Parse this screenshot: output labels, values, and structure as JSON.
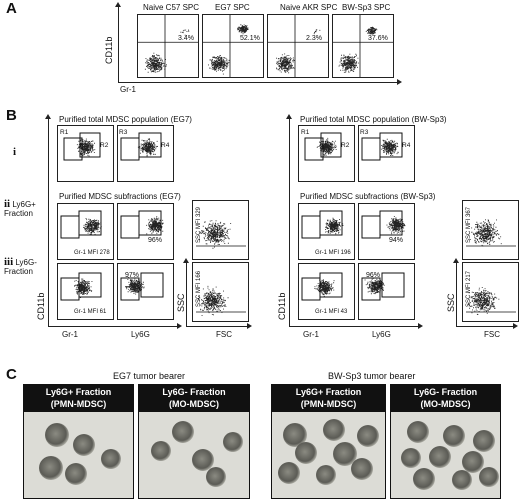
{
  "panel_labels": {
    "a": "A",
    "b": "B",
    "c": "C"
  },
  "panel_a": {
    "plots": [
      {
        "title": "Naive C57 SPC",
        "percent": "3.4%"
      },
      {
        "title": "EG7 SPC",
        "percent": "52.1%"
      },
      {
        "title": "Naive AKR SPC",
        "percent": "2.3%"
      },
      {
        "title": "BW-Sp3 SPC",
        "percent": "37.6%"
      }
    ],
    "y_axis": "CD11b",
    "x_axis": "Gr-1"
  },
  "panel_b": {
    "left": {
      "total_title": "Purified total MDSC population (EG7)",
      "sub_title": "Purified MDSC subfractions (EG7)",
      "gates": [
        "R1",
        "R2",
        "R3",
        "R4"
      ],
      "ly6g_pos_pct": "96%",
      "ly6g_neg_pct": "97%",
      "gr1_mfi_pos": "Gr-1 MFI 278",
      "gr1_mfi_neg": "Gr-1 MFI 61",
      "ssc_mfi_pos": "SSC MFI 329",
      "ssc_mfi_neg": "SSC MFI 166",
      "y_axis": "CD11b",
      "x_axis_1": "Gr-1",
      "x_axis_2": "Ly6G",
      "ssc_axis": "SSC",
      "fsc_axis": "FSC"
    },
    "right": {
      "total_title": "Purified total MDSC population (BW-Sp3)",
      "sub_title": "Purified MDSC subfractions (BW-Sp3)",
      "gates": [
        "R1",
        "R2",
        "R3",
        "R4"
      ],
      "ly6g_pos_pct": "94%",
      "ly6g_neg_pct": "96%",
      "gr1_mfi_pos": "Gr-1 MFI 196",
      "gr1_mfi_neg": "Gr-1 MFI 43",
      "ssc_mfi_pos": "SSC MFI 367",
      "ssc_mfi_neg": "SSC MFI 217",
      "y_axis": "CD11b",
      "x_axis_1": "Gr-1",
      "x_axis_2": "Ly6G",
      "ssc_axis": "SSC",
      "fsc_axis": "FSC"
    },
    "rows": [
      {
        "roman": "i",
        "label": ""
      },
      {
        "roman": "ii",
        "label": "Ly6G+",
        "label2": "Fraction"
      },
      {
        "roman": "iii",
        "label": "Ly6G-",
        "label2": "Fraction"
      }
    ]
  },
  "panel_c": {
    "eg7_title": "EG7 tumor bearer",
    "bw_title": "BW-Sp3 tumor bearer",
    "panels": [
      {
        "line1": "Ly6G+ Fraction",
        "line2": "(PMN-MDSC)"
      },
      {
        "line1": "Ly6G- Fraction",
        "line2": "(MO-MDSC)"
      },
      {
        "line1": "Ly6G+ Fraction",
        "line2": "(PMN-MDSC)"
      },
      {
        "line1": "Ly6G- Fraction",
        "line2": "(MO-MDSC)"
      }
    ]
  }
}
